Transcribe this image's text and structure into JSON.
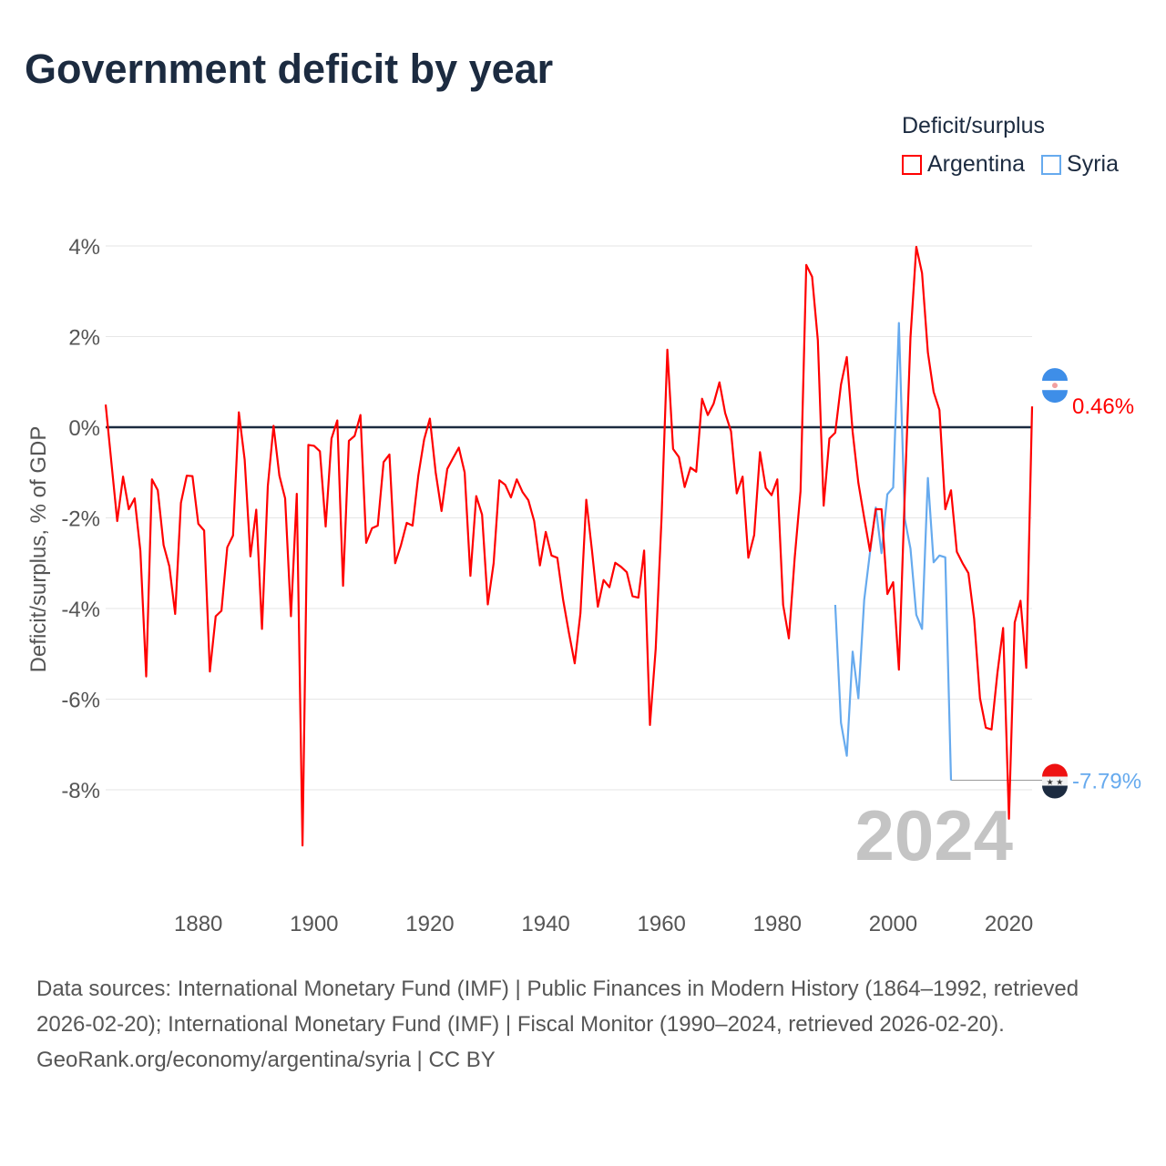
{
  "title": "Government deficit by year",
  "legend": {
    "title": "Deficit/surplus",
    "items": [
      {
        "name": "Argentina",
        "color": "#ff0000"
      },
      {
        "name": "Syria",
        "color": "#66aaee"
      }
    ]
  },
  "watermark_year": "2024",
  "footer": {
    "sources": "Data sources: International Monetary Fund (IMF) | Public Finances in Modern History (1864–1992, retrieved 2026-02-20); International Monetary Fund (IMF) | Fiscal Monitor (1990–2024, retrieved 2026-02-20).",
    "credit": "GeoRank.org/economy/argentina/syria | CC BY"
  },
  "chart_data": {
    "type": "line",
    "title": "Government deficit by year",
    "xlabel": "",
    "ylabel": "Deficit/surplus, % of GDP",
    "xlim": [
      1864,
      2024
    ],
    "ylim": [
      -10,
      4.5
    ],
    "x_ticks": [
      1880,
      1900,
      1920,
      1940,
      1960,
      1980,
      2000,
      2020
    ],
    "y_ticks": [
      4,
      2,
      0,
      -2,
      -4,
      -6,
      -8
    ],
    "y_tick_labels": [
      "4%",
      "2%",
      "0%",
      "-2%",
      "-4%",
      "-6%",
      "-8%"
    ],
    "grid": true,
    "legend_position": "top-right",
    "end_labels": [
      "0.46%",
      "-7.79%"
    ],
    "series": [
      {
        "name": "Argentina",
        "color": "#ff0000",
        "start_year": 1864,
        "values": [
          0.5,
          -0.8,
          -2.07,
          -1.09,
          -1.81,
          -1.57,
          -2.73,
          -5.5,
          -1.15,
          -1.39,
          -2.6,
          -3.07,
          -4.12,
          -1.67,
          -1.07,
          -1.08,
          -2.13,
          -2.28,
          -5.39,
          -4.17,
          -4.05,
          -2.65,
          -2.39,
          0.33,
          -0.72,
          -2.85,
          -1.82,
          -4.45,
          -1.3,
          0.03,
          -1.07,
          -1.57,
          -4.17,
          -1.47,
          -9.23,
          -0.39,
          -0.41,
          -0.53,
          -2.19,
          -0.25,
          0.15,
          -3.5,
          -0.3,
          -0.19,
          0.27,
          -2.55,
          -2.23,
          -2.17,
          -0.77,
          -0.6,
          -3.0,
          -2.6,
          -2.11,
          -2.17,
          -1.07,
          -0.27,
          0.19,
          -1.0,
          -1.85,
          -0.92,
          -0.68,
          -0.45,
          -1.0,
          -3.28,
          -1.52,
          -1.93,
          -3.91,
          -3.0,
          -1.17,
          -1.27,
          -1.55,
          -1.15,
          -1.43,
          -1.61,
          -2.07,
          -3.05,
          -2.31,
          -2.83,
          -2.88,
          -3.8,
          -4.53,
          -5.21,
          -4.1,
          -1.6,
          -2.73,
          -3.96,
          -3.37,
          -3.53,
          -2.99,
          -3.08,
          -3.2,
          -3.73,
          -3.76,
          -2.72,
          -6.57,
          -4.89,
          -2.02,
          1.71,
          -0.48,
          -0.66,
          -1.32,
          -0.89,
          -0.98,
          0.63,
          0.27,
          0.52,
          0.99,
          0.31,
          -0.09,
          -1.46,
          -1.09,
          -2.88,
          -2.38,
          -0.55,
          -1.34,
          -1.5,
          -1.15,
          -3.92,
          -4.66,
          -2.88,
          -1.41,
          3.58,
          3.32,
          1.92,
          -1.73,
          -0.25,
          -0.12,
          0.94,
          1.55,
          -0.1,
          -1.23,
          -2.0,
          -2.73,
          -1.81,
          -1.81,
          -3.68,
          -3.42,
          -5.35,
          -1.5,
          1.98,
          3.98,
          3.4,
          1.65,
          0.78,
          0.38,
          -1.81,
          -1.39,
          -2.75,
          -3.0,
          -3.22,
          -4.23,
          -5.98,
          -6.63,
          -6.67,
          -5.43,
          -4.43,
          -8.64,
          -4.31,
          -3.83,
          -5.31,
          0.46
        ],
        "last_value_label": "0.46%"
      },
      {
        "name": "Syria",
        "color": "#66aaee",
        "start_year": 1990,
        "values": [
          -3.92,
          -6.52,
          -7.25,
          -4.95,
          -5.98,
          -3.81,
          -2.77,
          -1.77,
          -2.78,
          -1.48,
          -1.33,
          2.3,
          -2.02,
          -2.68,
          -4.14,
          -4.45,
          -1.12,
          -2.98,
          -2.83,
          -2.87,
          -7.79
        ],
        "last_value_label": "-7.79%"
      }
    ]
  }
}
